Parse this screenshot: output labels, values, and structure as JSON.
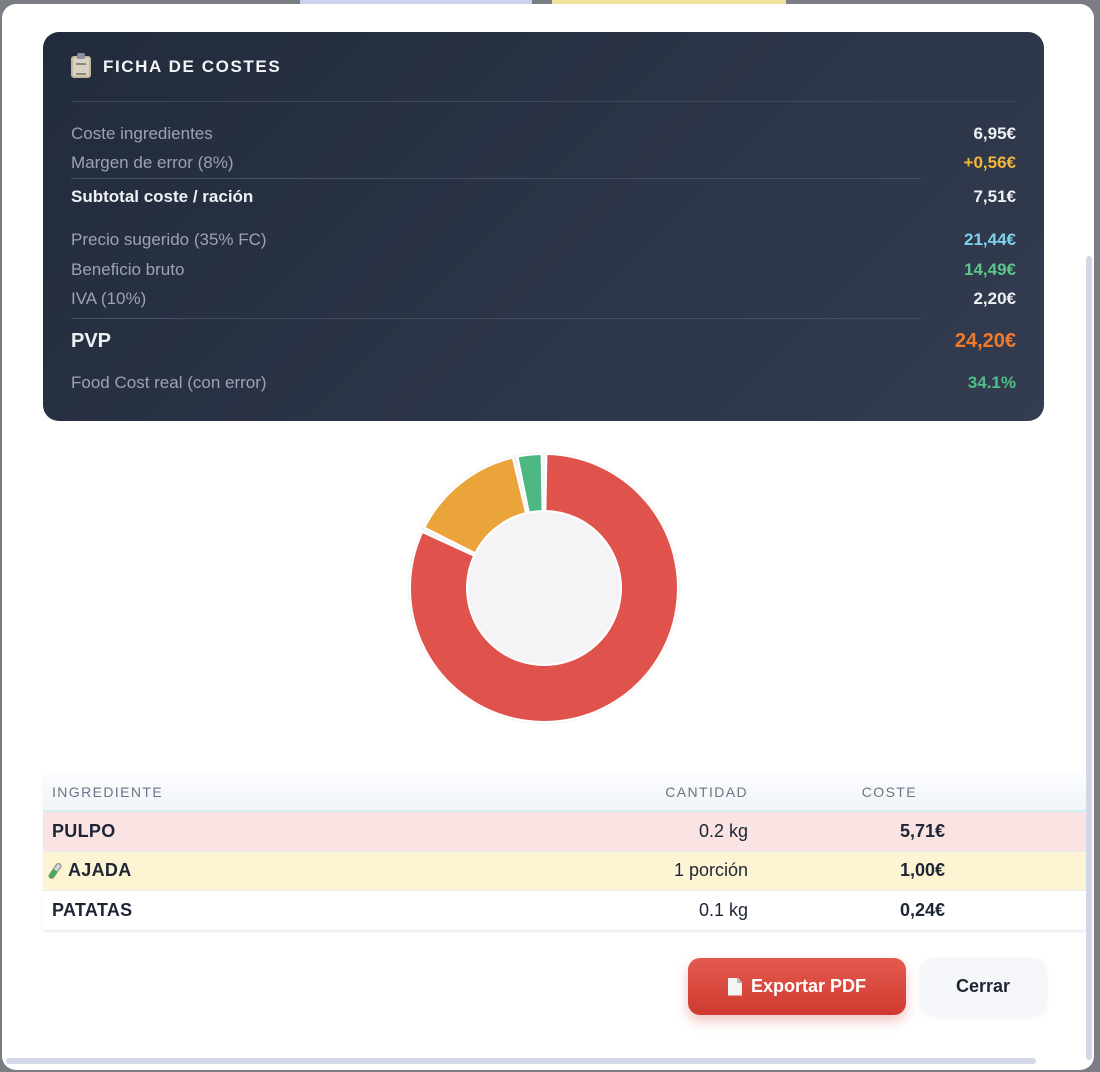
{
  "card": {
    "title": "FICHA DE COSTES",
    "icon": "clipboard-icon",
    "rows": {
      "ingredients_label": "Coste ingredientes",
      "ingredients_value": "6,95€",
      "margin_label": "Margen de error (8%)",
      "margin_value": "+0,56€",
      "subtotal_label": "Subtotal coste / ración",
      "subtotal_value": "7,51€",
      "suggested_label": "Precio sugerido (35% FC)",
      "suggested_value": "21,44€",
      "profit_label": "Beneficio bruto",
      "profit_value": "14,49€",
      "iva_label": "IVA (10%)",
      "iva_value": "2,20€",
      "pvp_label": "PVP",
      "pvp_value": "24,20€",
      "foodcost_label": "Food Cost real (con error)",
      "foodcost_value": "34.1%"
    }
  },
  "chart_data": {
    "type": "pie",
    "donut": true,
    "slices": [
      {
        "label": "PULPO",
        "value": 5.71,
        "color": "#e0534c"
      },
      {
        "label": "AJADA",
        "value": 1.0,
        "color": "#eba43a"
      },
      {
        "label": "PATATAS",
        "value": 0.24,
        "color": "#4db882"
      }
    ]
  },
  "table": {
    "headers": {
      "ingredient": "INGREDIENTE",
      "quantity": "CANTIDAD",
      "cost": "COSTE"
    },
    "rows": [
      {
        "name": "PULPO",
        "quantity": "0.2 kg",
        "cost": "5,71€",
        "bg": "#f9e3e3",
        "icon": ""
      },
      {
        "name": "AJADA",
        "quantity": "1 porción",
        "cost": "1,00€",
        "bg": "#fcf4d2",
        "icon": "test-tube-icon"
      },
      {
        "name": "PATATAS",
        "quantity": "0.1 kg",
        "cost": "0,24€",
        "bg": "#ffffff",
        "icon": ""
      }
    ]
  },
  "actions": {
    "export_label": "Exportar PDF",
    "close_label": "Cerrar"
  }
}
